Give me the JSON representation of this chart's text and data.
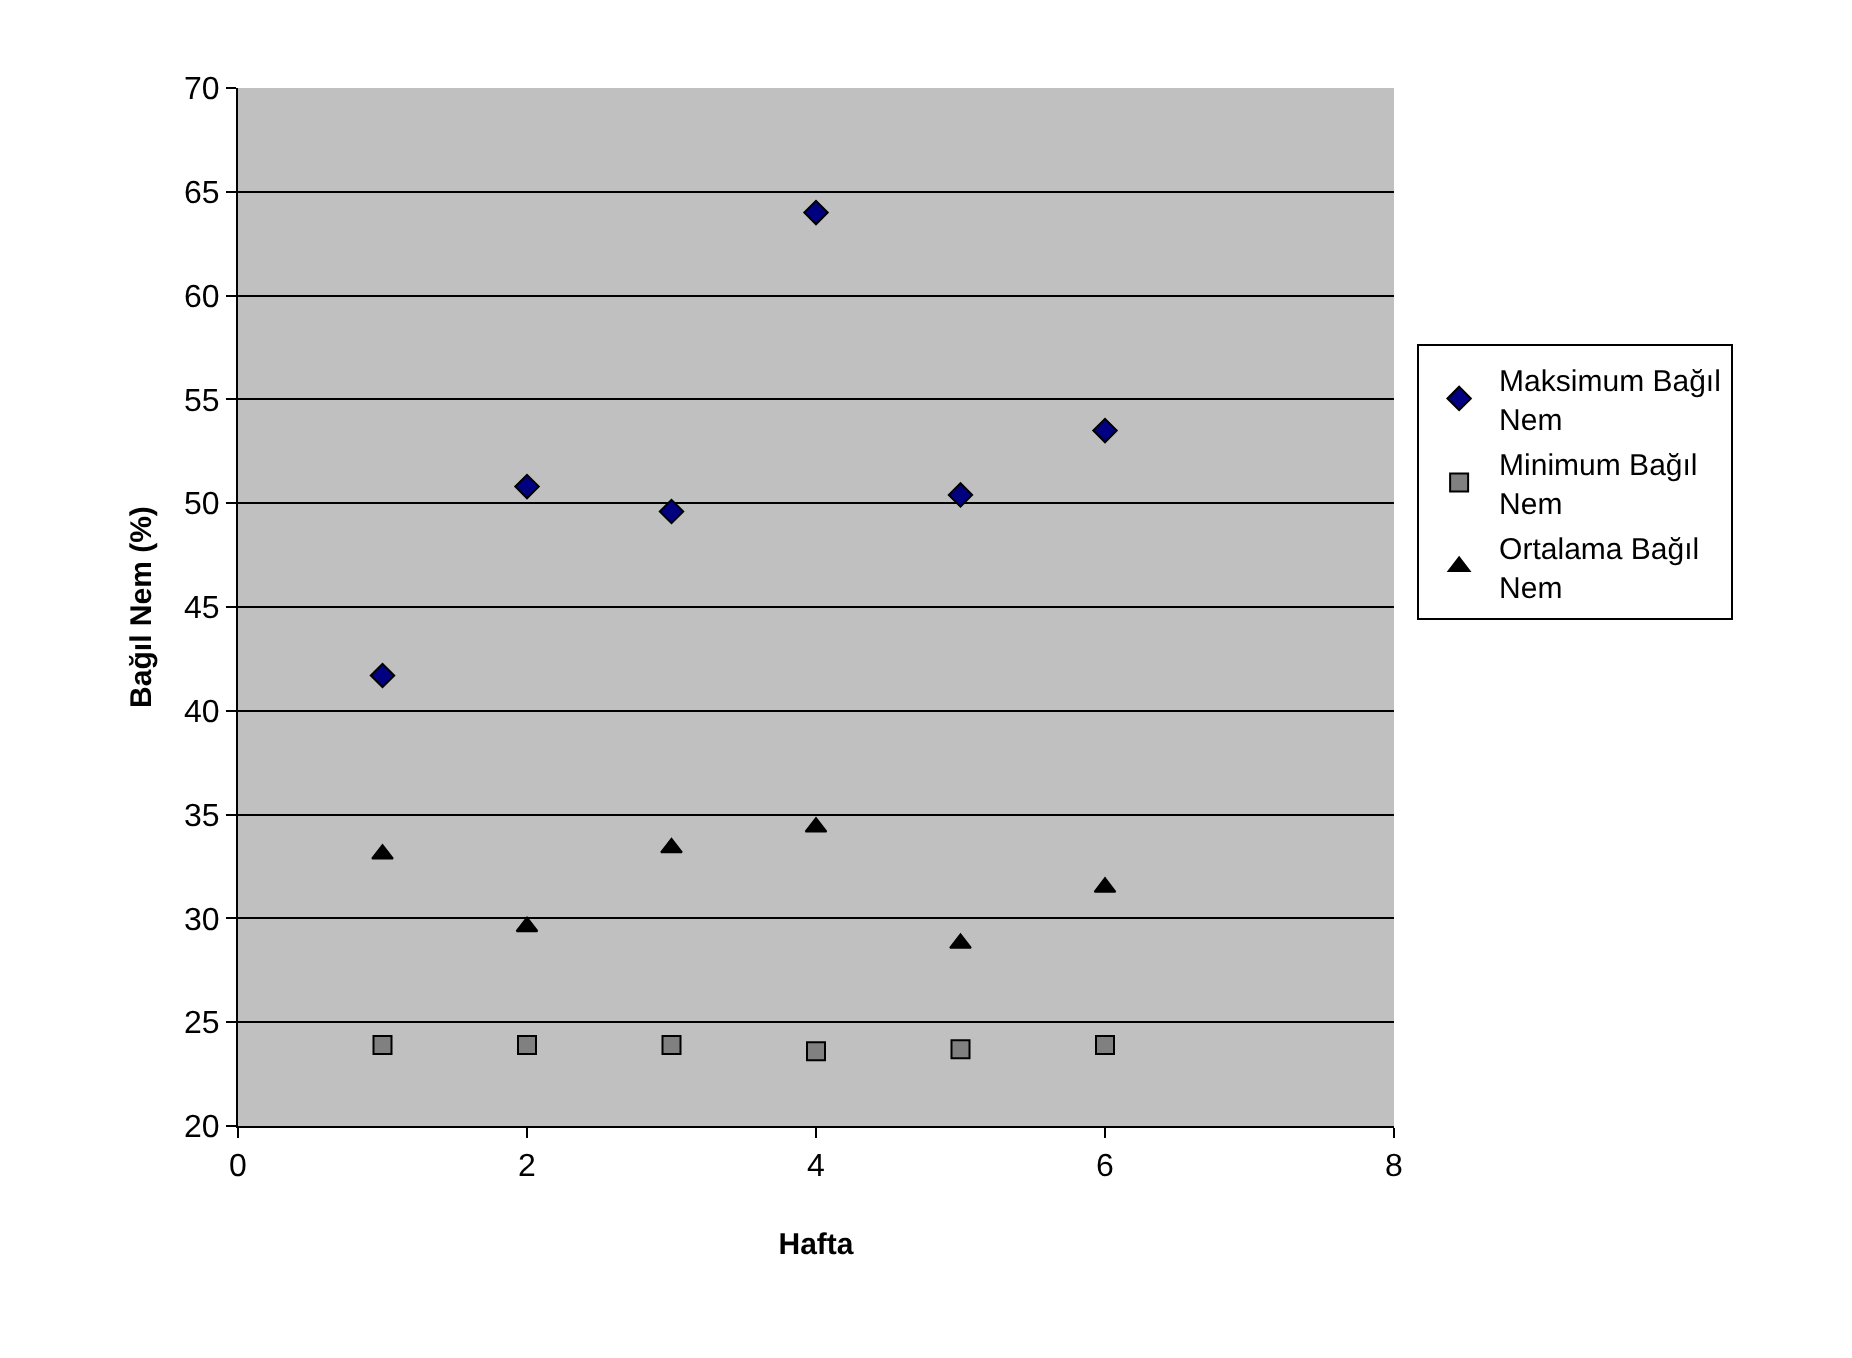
{
  "chart_data": {
    "type": "scatter",
    "xlabel": "Hafta",
    "ylabel": "Bağıl Nem (%)",
    "x": [
      1,
      2,
      3,
      4,
      5,
      6
    ],
    "series": [
      {
        "name": "Maksimum Bağıl Nem",
        "color": "#000080",
        "marker": "diamond",
        "values": [
          41.7,
          50.8,
          49.6,
          64.0,
          50.4,
          53.5
        ]
      },
      {
        "name": "Minimum Bağıl Nem",
        "color": "#808080",
        "marker": "square",
        "values": [
          23.9,
          23.9,
          23.9,
          23.6,
          23.7,
          23.9
        ]
      },
      {
        "name": "Ortalama Bağıl Nem",
        "color": "#000000",
        "marker": "triangle",
        "values": [
          33.1,
          29.6,
          33.4,
          34.4,
          28.8,
          31.5
        ]
      }
    ],
    "xlim": [
      0,
      8
    ],
    "xticks": [
      0,
      2,
      4,
      6,
      8
    ],
    "ylim": [
      20,
      70
    ],
    "yticks": [
      20,
      25,
      30,
      35,
      40,
      45,
      50,
      55,
      60,
      65,
      70
    ],
    "grid": "y",
    "legend": "right"
  }
}
